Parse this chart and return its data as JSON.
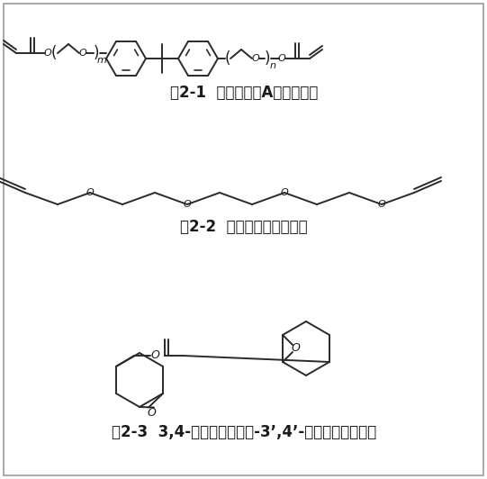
{
  "label1": "图2-1  乙氧化双酚A二丙烯酸酯",
  "label2": "图2-2  三乙二醇二乙烯基醚",
  "label3": "图2-3  3,4-环氧环己基甲基-3’,4’-环氧环己基甲酸酯",
  "label_fontsize": 12,
  "fig_width": 5.41,
  "fig_height": 5.32,
  "lc": "#2a2a2a",
  "lw": 1.4,
  "border_color": "#999999"
}
